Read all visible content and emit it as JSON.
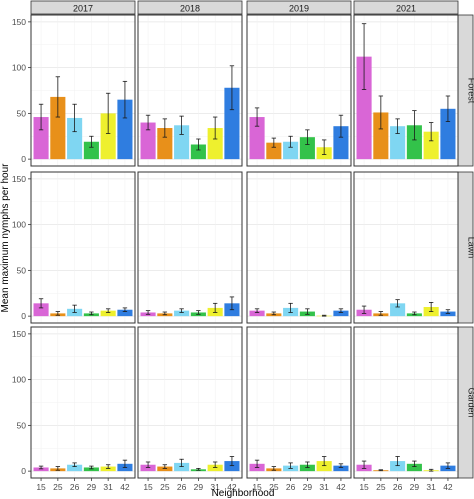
{
  "chart_data": {
    "type": "bar",
    "xlabel": "Neighborhood",
    "ylabel": "Mean maximum nymphs per hour",
    "ylim": [
      0,
      150
    ],
    "yticks": [
      0,
      50,
      100,
      150
    ],
    "grid": true,
    "legend": "none",
    "col_facets": [
      "2017",
      "2018",
      "2019",
      "2021"
    ],
    "row_facets": [
      "Forest",
      "Lawn",
      "Garden"
    ],
    "categories": [
      "15",
      "25",
      "26",
      "29",
      "31",
      "42"
    ],
    "colors": [
      "#d966d6",
      "#e8901a",
      "#7fd6f2",
      "#33c24a",
      "#eef02e",
      "#2f7de0"
    ],
    "panels": [
      {
        "row": "Forest",
        "col": "2017",
        "values": [
          46,
          68,
          45,
          19,
          50,
          65
        ],
        "err": [
          14,
          22,
          15,
          6,
          22,
          20
        ]
      },
      {
        "row": "Forest",
        "col": "2018",
        "values": [
          40,
          34,
          37,
          16,
          34,
          78
        ],
        "err": [
          8,
          10,
          10,
          6,
          12,
          24
        ]
      },
      {
        "row": "Forest",
        "col": "2019",
        "values": [
          46,
          18,
          19,
          24,
          13,
          36
        ],
        "err": [
          10,
          5,
          6,
          8,
          8,
          12
        ]
      },
      {
        "row": "Forest",
        "col": "2021",
        "values": [
          112,
          51,
          36,
          37,
          30,
          55
        ],
        "err": [
          36,
          18,
          8,
          16,
          10,
          14
        ]
      },
      {
        "row": "Lawn",
        "col": "2017",
        "values": [
          14,
          3,
          8,
          3,
          6,
          7
        ],
        "err": [
          5,
          2,
          4,
          1.5,
          2,
          2
        ]
      },
      {
        "row": "Lawn",
        "col": "2018",
        "values": [
          4,
          3,
          6,
          4,
          9,
          14
        ],
        "err": [
          2,
          1.5,
          2,
          2,
          5,
          7
        ]
      },
      {
        "row": "Lawn",
        "col": "2019",
        "values": [
          6,
          3,
          9,
          5,
          0.5,
          6
        ],
        "err": [
          2,
          1.5,
          5,
          3,
          0.5,
          2
        ]
      },
      {
        "row": "Lawn",
        "col": "2021",
        "values": [
          7,
          3,
          14,
          3,
          10,
          5
        ],
        "err": [
          4,
          2,
          4,
          1.5,
          5,
          2
        ]
      },
      {
        "row": "Garden",
        "col": "2017",
        "values": [
          4,
          3,
          7,
          4,
          5,
          8
        ],
        "err": [
          1.5,
          2,
          2,
          1.5,
          2,
          4
        ]
      },
      {
        "row": "Garden",
        "col": "2018",
        "values": [
          7,
          5,
          9,
          2,
          7,
          11
        ],
        "err": [
          3,
          2,
          4,
          1,
          3,
          5
        ]
      },
      {
        "row": "Garden",
        "col": "2019",
        "values": [
          8,
          3,
          6,
          7,
          11,
          6
        ],
        "err": [
          4,
          2,
          3,
          3,
          5,
          2
        ]
      },
      {
        "row": "Garden",
        "col": "2021",
        "values": [
          7,
          1,
          11,
          8,
          1,
          6
        ],
        "err": [
          4,
          0.5,
          5,
          3,
          1,
          3
        ]
      }
    ]
  }
}
